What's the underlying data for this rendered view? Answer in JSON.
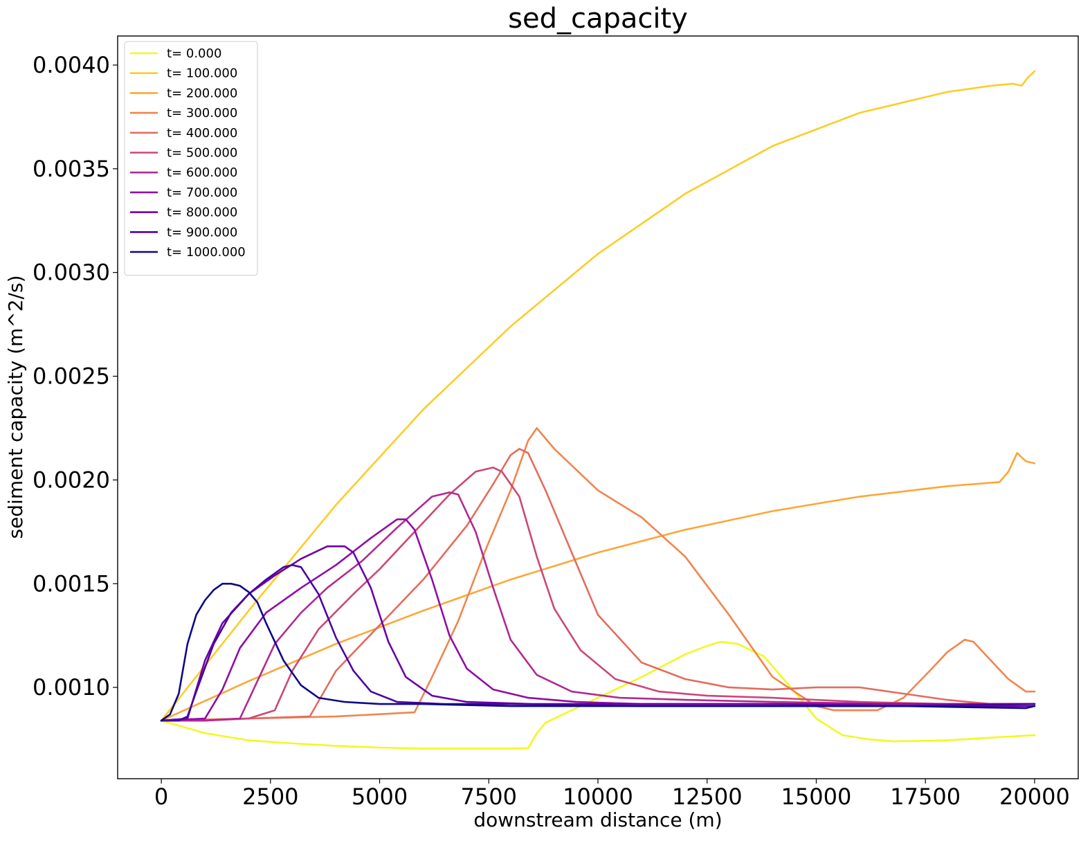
{
  "chart_data": {
    "type": "line",
    "title": "sed_capacity",
    "xlabel": "downstream distance (m)",
    "ylabel": "sediment capacity (m^2/s)",
    "xlim": [
      -1000,
      21000
    ],
    "ylim": [
      0.00056,
      0.00414
    ],
    "xticks": [
      0,
      2500,
      5000,
      7500,
      10000,
      12500,
      15000,
      17500,
      20000
    ],
    "xtick_labels": [
      "0",
      "2500",
      "5000",
      "7500",
      "10000",
      "12500",
      "15000",
      "17500",
      "20000"
    ],
    "yticks": [
      0.001,
      0.0015,
      0.002,
      0.0025,
      0.003,
      0.0035,
      0.004
    ],
    "ytick_labels": [
      "0.0010",
      "0.0015",
      "0.0020",
      "0.0025",
      "0.0030",
      "0.0035",
      "0.0040"
    ],
    "grid": false,
    "legend_position": "top-left",
    "series": [
      {
        "name": "t= 0.000",
        "color": "#f0f921",
        "x": [
          0,
          1000,
          2000,
          3000,
          4000,
          5000,
          6000,
          7000,
          8000,
          8400,
          8600,
          8800,
          10000,
          11000,
          12000,
          12500,
          12800,
          13200,
          13800,
          14500,
          15000,
          15600,
          16200,
          16800,
          18000,
          19000,
          20000
        ],
        "y": [
          0.00084,
          0.00078,
          0.000745,
          0.00073,
          0.000718,
          0.00071,
          0.000705,
          0.000705,
          0.000705,
          0.000707,
          0.00078,
          0.00083,
          0.00095,
          0.00105,
          0.00116,
          0.0012,
          0.00122,
          0.00121,
          0.00115,
          0.00098,
          0.00085,
          0.00077,
          0.00075,
          0.00074,
          0.000745,
          0.000758,
          0.00077
        ]
      },
      {
        "name": "t= 100.000",
        "color": "#fccd25",
        "x": [
          0,
          2000,
          4000,
          6000,
          8000,
          10000,
          12000,
          14000,
          16000,
          18000,
          19000,
          19500,
          19700,
          19850,
          20000
        ],
        "y": [
          0.00084,
          0.00137,
          0.00188,
          0.00234,
          0.00274,
          0.00309,
          0.00338,
          0.00361,
          0.00377,
          0.00387,
          0.0039,
          0.00391,
          0.0039,
          0.00394,
          0.00397
        ]
      },
      {
        "name": "t= 200.000",
        "color": "#fca636",
        "x": [
          0,
          2000,
          4000,
          6000,
          8000,
          10000,
          12000,
          14000,
          16000,
          18000,
          19200,
          19400,
          19600,
          19800,
          20000
        ],
        "y": [
          0.00084,
          0.00103,
          0.00121,
          0.00137,
          0.00152,
          0.00165,
          0.00176,
          0.00185,
          0.00192,
          0.00197,
          0.00199,
          0.00204,
          0.00213,
          0.00209,
          0.00208
        ]
      },
      {
        "name": "t= 300.000",
        "color": "#f2844b",
        "x": [
          0,
          2000,
          4000,
          5800,
          6200,
          6800,
          7400,
          8000,
          8400,
          8600,
          9000,
          10000,
          11000,
          12000,
          13000,
          14000,
          15000,
          15400,
          16400,
          17000,
          17600,
          18000,
          18400,
          18600,
          19000,
          19400,
          19800,
          20000
        ],
        "y": [
          0.00084,
          0.00085,
          0.00086,
          0.00088,
          0.00105,
          0.00132,
          0.00165,
          0.00195,
          0.00219,
          0.00225,
          0.00215,
          0.00195,
          0.00182,
          0.00163,
          0.00135,
          0.00105,
          0.00091,
          0.00089,
          0.00089,
          0.00095,
          0.00108,
          0.00117,
          0.00123,
          0.00122,
          0.00113,
          0.00104,
          0.00098,
          0.00098
        ]
      },
      {
        "name": "t= 400.000",
        "color": "#e56b5d",
        "x": [
          0,
          2000,
          3400,
          4000,
          5000,
          6000,
          7000,
          7600,
          8000,
          8200,
          8400,
          8800,
          9400,
          10000,
          11000,
          12000,
          13000,
          14000,
          15000,
          16000,
          17000,
          18000,
          19000,
          20000
        ],
        "y": [
          0.00084,
          0.00085,
          0.00086,
          0.00108,
          0.0013,
          0.00152,
          0.00178,
          0.00198,
          0.00212,
          0.00215,
          0.00213,
          0.00195,
          0.00165,
          0.00135,
          0.00112,
          0.00104,
          0.001,
          0.00099,
          0.001,
          0.001,
          0.00097,
          0.00094,
          0.00092,
          0.00092
        ]
      },
      {
        "name": "t= 500.000",
        "color": "#cb4778",
        "x": [
          0,
          1000,
          2000,
          2600,
          3000,
          3600,
          4400,
          5000,
          5800,
          6600,
          7200,
          7600,
          7800,
          8200,
          8600,
          9000,
          9600,
          10400,
          11400,
          12500,
          14000,
          16000,
          18000,
          20000
        ],
        "y": [
          0.00084,
          0.00084,
          0.00085,
          0.00089,
          0.00108,
          0.00128,
          0.00145,
          0.00157,
          0.00175,
          0.00193,
          0.00204,
          0.00206,
          0.00204,
          0.00192,
          0.00163,
          0.00138,
          0.00118,
          0.00104,
          0.00098,
          0.00096,
          0.00095,
          0.00093,
          0.00092,
          0.00092
        ]
      },
      {
        "name": "t= 600.000",
        "color": "#b12a90",
        "x": [
          0,
          1000,
          1800,
          2200,
          2600,
          3200,
          3800,
          4600,
          5400,
          6200,
          6600,
          6800,
          7200,
          7600,
          8000,
          8600,
          9400,
          10500,
          12000,
          14000,
          17000,
          20000
        ],
        "y": [
          0.00084,
          0.00084,
          0.00085,
          0.00103,
          0.00121,
          0.00136,
          0.00148,
          0.00161,
          0.00177,
          0.00192,
          0.00194,
          0.00193,
          0.00175,
          0.00148,
          0.00123,
          0.00106,
          0.00098,
          0.00095,
          0.00094,
          0.00093,
          0.00092,
          0.00092
        ]
      },
      {
        "name": "t= 700.000",
        "color": "#8f0da4",
        "x": [
          0,
          1000,
          1400,
          1800,
          2400,
          3200,
          4000,
          4800,
          5400,
          5600,
          5800,
          6200,
          6600,
          7000,
          7600,
          8400,
          9500,
          11000,
          14000,
          17000,
          20000
        ],
        "y": [
          0.00084,
          0.00085,
          0.00099,
          0.00119,
          0.00136,
          0.00148,
          0.00159,
          0.00172,
          0.00181,
          0.00181,
          0.00176,
          0.00152,
          0.00125,
          0.00109,
          0.00099,
          0.00095,
          0.00093,
          0.00092,
          0.00092,
          0.00092,
          0.00092
        ]
      },
      {
        "name": "t= 800.000",
        "color": "#6a00a8",
        "x": [
          0,
          600,
          1000,
          1400,
          2000,
          2600,
          3200,
          3800,
          4200,
          4400,
          4800,
          5200,
          5600,
          6200,
          7000,
          8500,
          11000,
          14000,
          17000,
          20000
        ],
        "y": [
          0.00084,
          0.00085,
          0.00113,
          0.00131,
          0.00145,
          0.00154,
          0.00162,
          0.00168,
          0.00168,
          0.00165,
          0.00148,
          0.00122,
          0.00105,
          0.00096,
          0.00093,
          0.00092,
          0.00092,
          0.00092,
          0.00091,
          0.00091
        ]
      },
      {
        "name": "t= 900.000",
        "color": "#4903a0",
        "x": [
          0,
          200,
          400,
          600,
          800,
          1200,
          1600,
          2000,
          2400,
          2800,
          3000,
          3200,
          3600,
          4000,
          4400,
          4800,
          5400,
          6500,
          8000,
          11000,
          14000,
          17000,
          20000
        ],
        "y": [
          0.00084,
          0.00084,
          0.00084,
          0.00086,
          0.00098,
          0.00121,
          0.00136,
          0.00145,
          0.00152,
          0.00158,
          0.00159,
          0.00158,
          0.00145,
          0.00124,
          0.00108,
          0.00098,
          0.00093,
          0.00092,
          0.00092,
          0.00091,
          0.00091,
          0.00091,
          0.00092
        ]
      },
      {
        "name": "t= 1000.000",
        "color": "#0d0887",
        "x": [
          0,
          200,
          400,
          600,
          800,
          1000,
          1200,
          1400,
          1600,
          1800,
          2000,
          2200,
          2400,
          2800,
          3200,
          3600,
          4200,
          5000,
          6000,
          8000,
          11000,
          14000,
          17000,
          19800,
          20000
        ],
        "y": [
          0.00084,
          0.00087,
          0.00097,
          0.00121,
          0.00135,
          0.00142,
          0.00147,
          0.0015,
          0.0015,
          0.00149,
          0.00146,
          0.00141,
          0.00131,
          0.00113,
          0.00101,
          0.00095,
          0.00093,
          0.00092,
          0.00092,
          0.00091,
          0.00091,
          0.00091,
          0.00091,
          0.0009,
          0.00091
        ]
      }
    ]
  }
}
